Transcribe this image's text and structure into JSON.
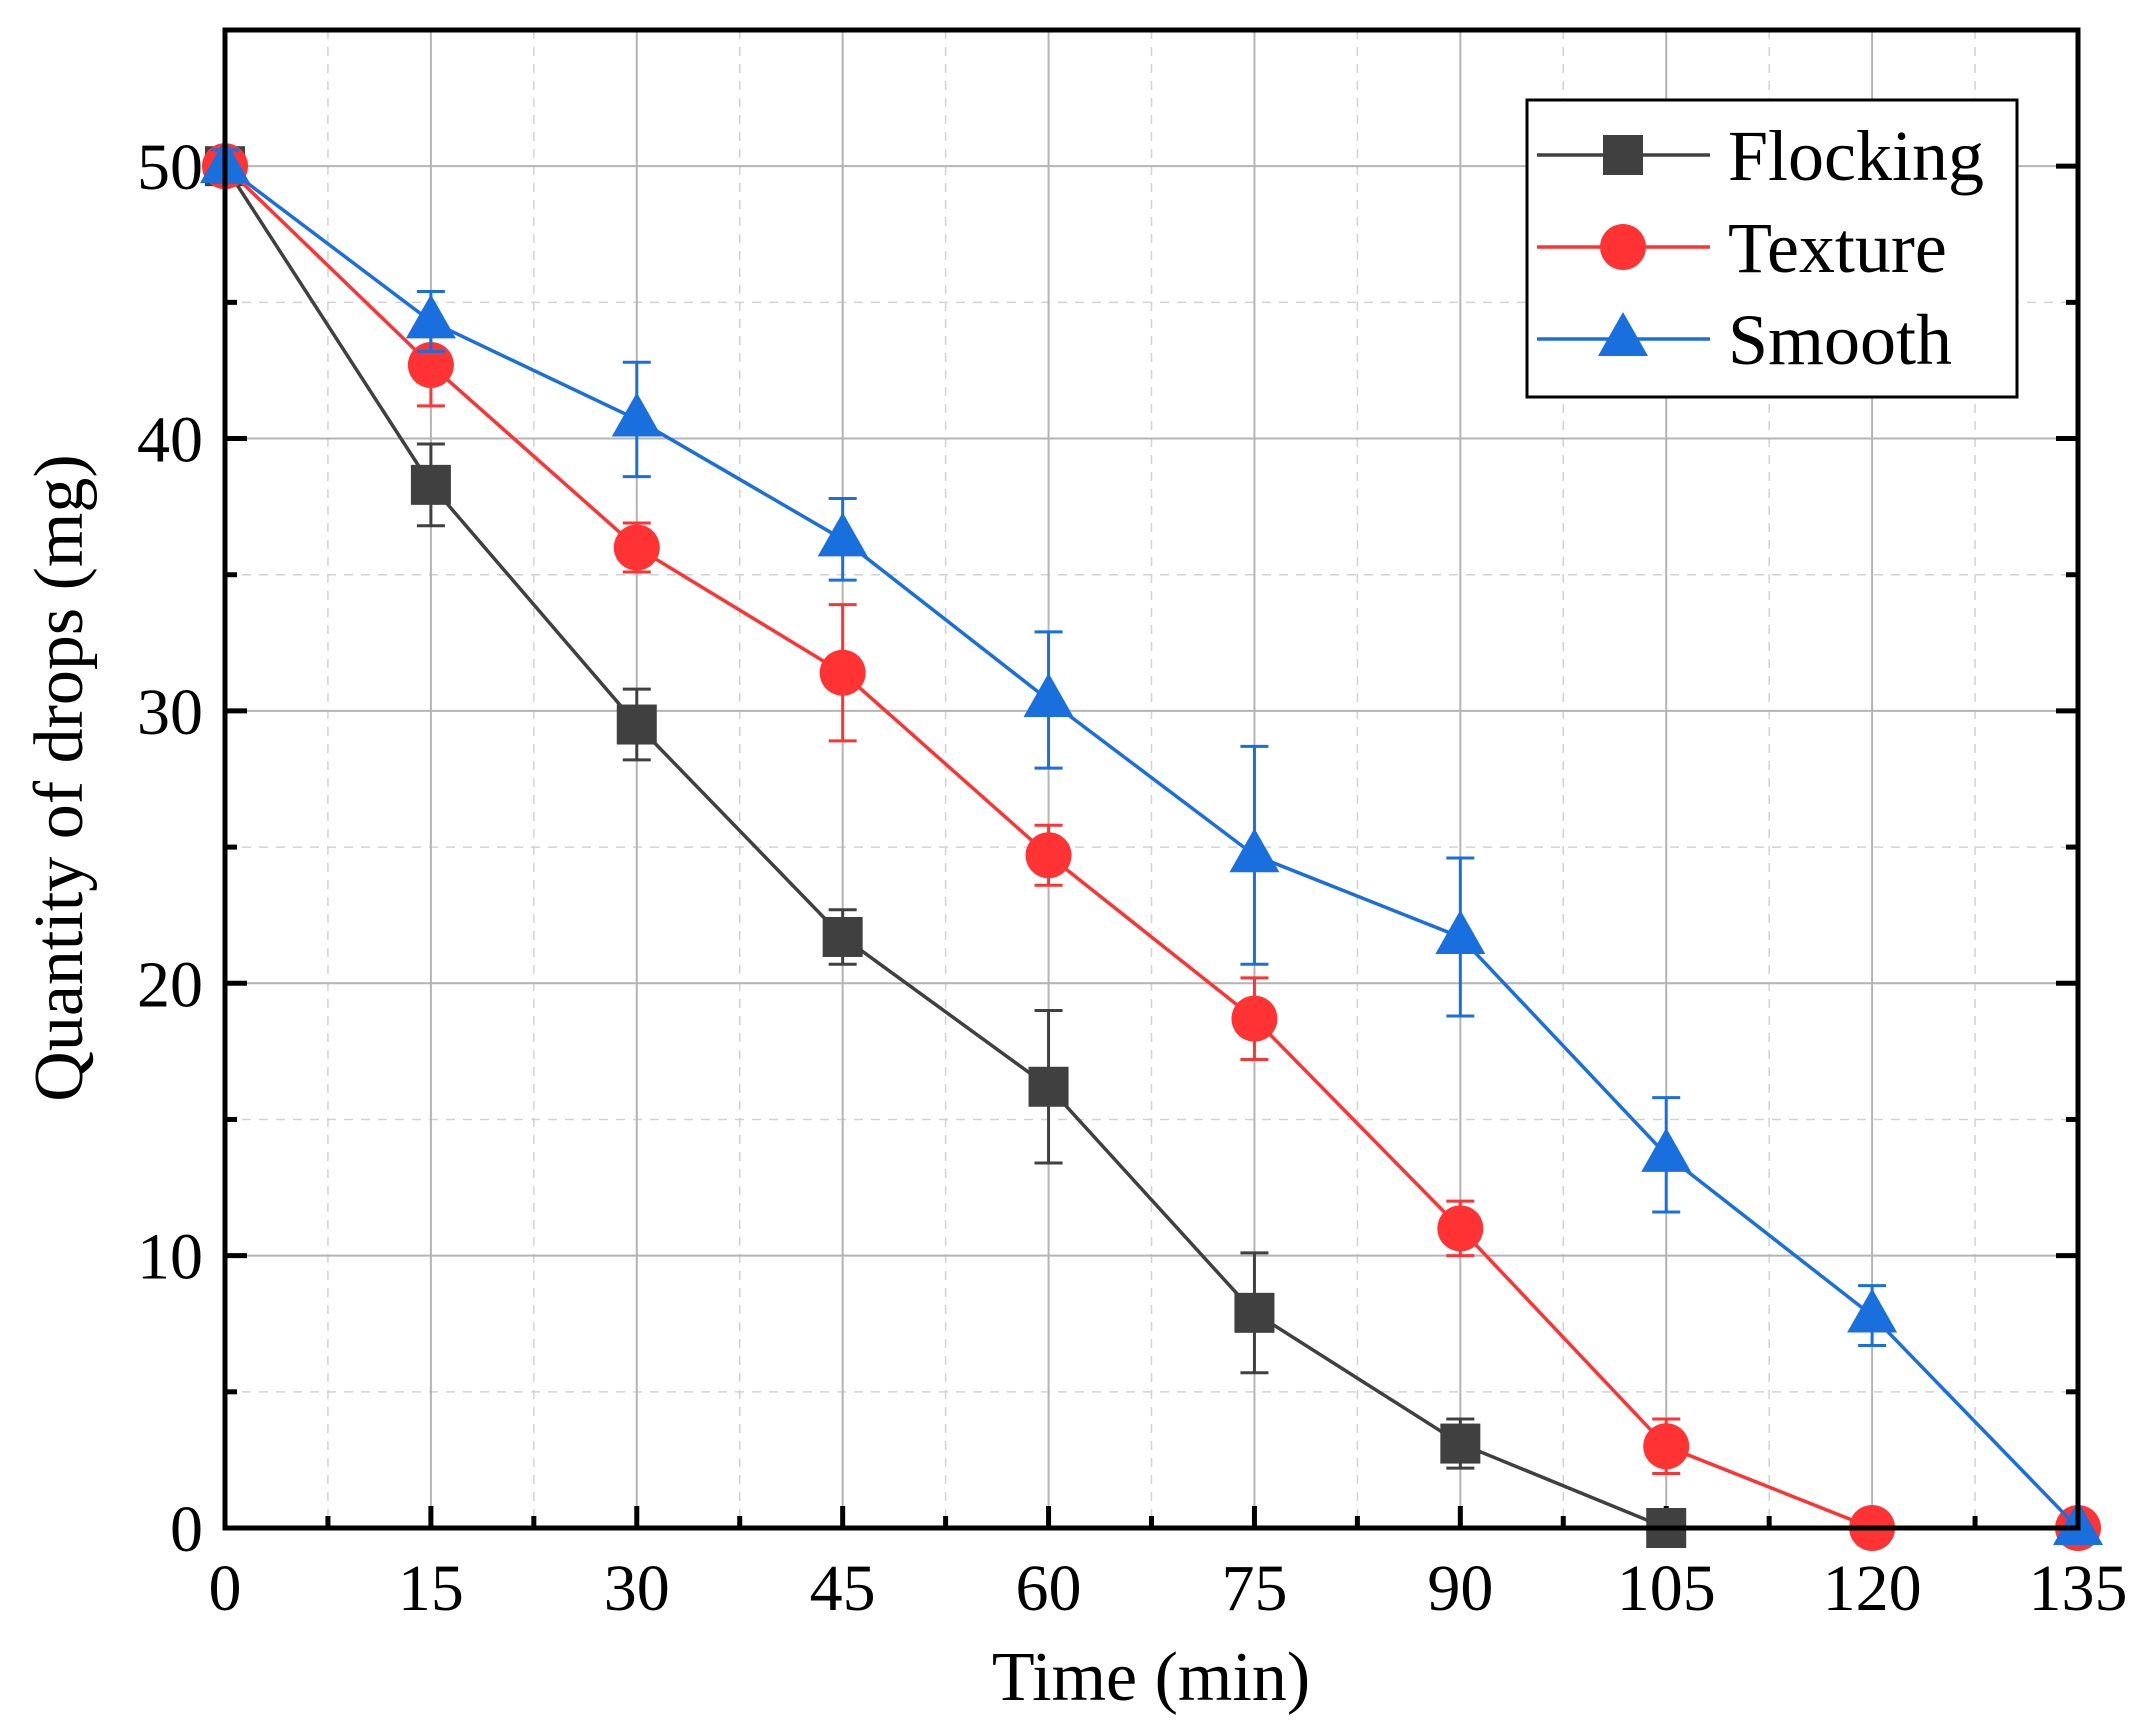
{
  "chart_data": {
    "type": "line",
    "title": "",
    "xlabel": "Time (min)",
    "ylabel": "Quantity of drops (mg)",
    "xlim": [
      0,
      135
    ],
    "ylim": [
      0,
      55
    ],
    "xticks": [
      0,
      15,
      30,
      45,
      60,
      75,
      90,
      105,
      120,
      135
    ],
    "yticks": [
      0,
      10,
      20,
      30,
      40,
      50
    ],
    "grid": true,
    "legend_position": "top-right",
    "series": [
      {
        "name": "Flocking",
        "color": "#404040",
        "marker": "square",
        "x": [
          0,
          15,
          30,
          45,
          60,
          75,
          90,
          105
        ],
        "y": [
          50,
          38.3,
          29.5,
          21.7,
          16.2,
          7.9,
          3.1,
          0
        ],
        "err": [
          0.5,
          1.5,
          1.3,
          1.0,
          2.8,
          2.2,
          0.9,
          0
        ]
      },
      {
        "name": "Texture",
        "color": "#ff3333",
        "marker": "circle",
        "x": [
          0,
          15,
          30,
          45,
          60,
          75,
          90,
          105,
          120,
          135
        ],
        "y": [
          50,
          42.7,
          36,
          31.4,
          24.7,
          18.7,
          11.0,
          3.0,
          0,
          0
        ],
        "err": [
          0.6,
          1.5,
          0.9,
          2.5,
          1.1,
          1.5,
          1.0,
          1.0,
          0,
          0
        ]
      },
      {
        "name": "Smooth",
        "color": "#1a6fdf",
        "marker": "triangle",
        "x": [
          0,
          15,
          30,
          45,
          60,
          75,
          90,
          105,
          120,
          135
        ],
        "y": [
          50,
          44.3,
          40.7,
          36.3,
          30.4,
          24.7,
          21.7,
          13.7,
          7.8,
          0
        ],
        "err": [
          0.6,
          1.1,
          2.1,
          1.5,
          2.5,
          4.0,
          2.9,
          2.1,
          1.1,
          0
        ]
      }
    ]
  }
}
